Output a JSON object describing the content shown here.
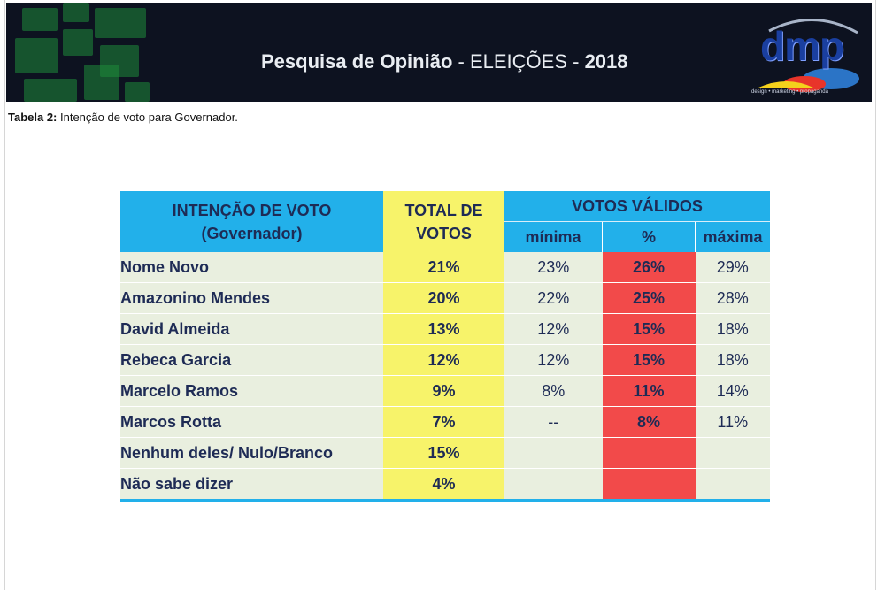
{
  "header": {
    "title_bold": "Pesquisa de Opinião",
    "title_dash": " - ",
    "title_light": "ELEIÇÕES",
    "title_dash2": " - ",
    "title_year": "2018",
    "logo_text": "dmp",
    "logo_sub": "design • marketing • propaganda"
  },
  "caption": {
    "label": "Tabela 2:",
    "text": " Intenção de voto para Governador."
  },
  "table": {
    "headers": {
      "intencao_line1": "INTENÇÃO DE VOTO",
      "intencao_line2": "(Governador)",
      "total_line1": "TOTAL DE",
      "total_line2": "VOTOS",
      "validos": "VOTOS VÁLIDOS",
      "minima": "mínima",
      "pct": "%",
      "maxima": "máxima"
    },
    "rows": [
      {
        "name": "Nome Novo",
        "total": "21%",
        "min": "23%",
        "pct": "26%",
        "max": "29%"
      },
      {
        "name": "Amazonino Mendes",
        "total": "20%",
        "min": "22%",
        "pct": "25%",
        "max": "28%"
      },
      {
        "name": "David Almeida",
        "total": "13%",
        "min": "12%",
        "pct": "15%",
        "max": "18%"
      },
      {
        "name": "Rebeca Garcia",
        "total": "12%",
        "min": "12%",
        "pct": "15%",
        "max": "18%"
      },
      {
        "name": "Marcelo Ramos",
        "total": "9%",
        "min": "8%",
        "pct": "11%",
        "max": "14%"
      },
      {
        "name": "Marcos Rotta",
        "total": "7%",
        "min": "--",
        "pct": "8%",
        "max": "11%"
      },
      {
        "name": "Nenhum deles/ Nulo/Branco",
        "total": "15%",
        "min": "",
        "pct": "",
        "max": ""
      },
      {
        "name": "Não sabe dizer",
        "total": "4%",
        "min": "",
        "pct": "",
        "max": ""
      }
    ]
  },
  "colors": {
    "header_blue": "#22b0ea",
    "total_yellow": "#f7f36a",
    "pct_red": "#f24a4a",
    "row_bg": "#e9efdf",
    "banner_bg": "#0d1220"
  }
}
